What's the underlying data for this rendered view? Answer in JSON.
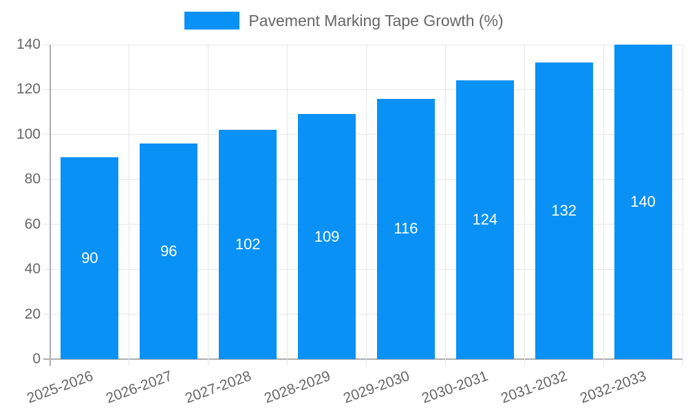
{
  "chart_data": {
    "type": "bar",
    "title": "Pavement Marking Tape Growth (%)",
    "legend": [
      "Pavement Marking Tape Growth (%)"
    ],
    "legend_position": "top",
    "categories": [
      "2025-2026",
      "2026-2027",
      "2027-2028",
      "2028-2029",
      "2029-2030",
      "2030-2031",
      "2031-2032",
      "2032-2033"
    ],
    "values": [
      90,
      96,
      102,
      109,
      116,
      124,
      132,
      140
    ],
    "xlabel": "",
    "ylabel": "",
    "ylim": [
      0,
      140
    ],
    "yticks": [
      0,
      20,
      40,
      60,
      80,
      100,
      120,
      140
    ],
    "grid": true,
    "bar_value_labels_shown": true,
    "x_tick_rotation_deg": 20,
    "colors": {
      "bar": "#0991f5",
      "bar_value_label": "#ffffff",
      "axis_text": "#666666",
      "legend_text": "#666666",
      "grid_line": "#e6e6e6",
      "axis_line": "#adadad",
      "background": "#ffffff"
    }
  }
}
